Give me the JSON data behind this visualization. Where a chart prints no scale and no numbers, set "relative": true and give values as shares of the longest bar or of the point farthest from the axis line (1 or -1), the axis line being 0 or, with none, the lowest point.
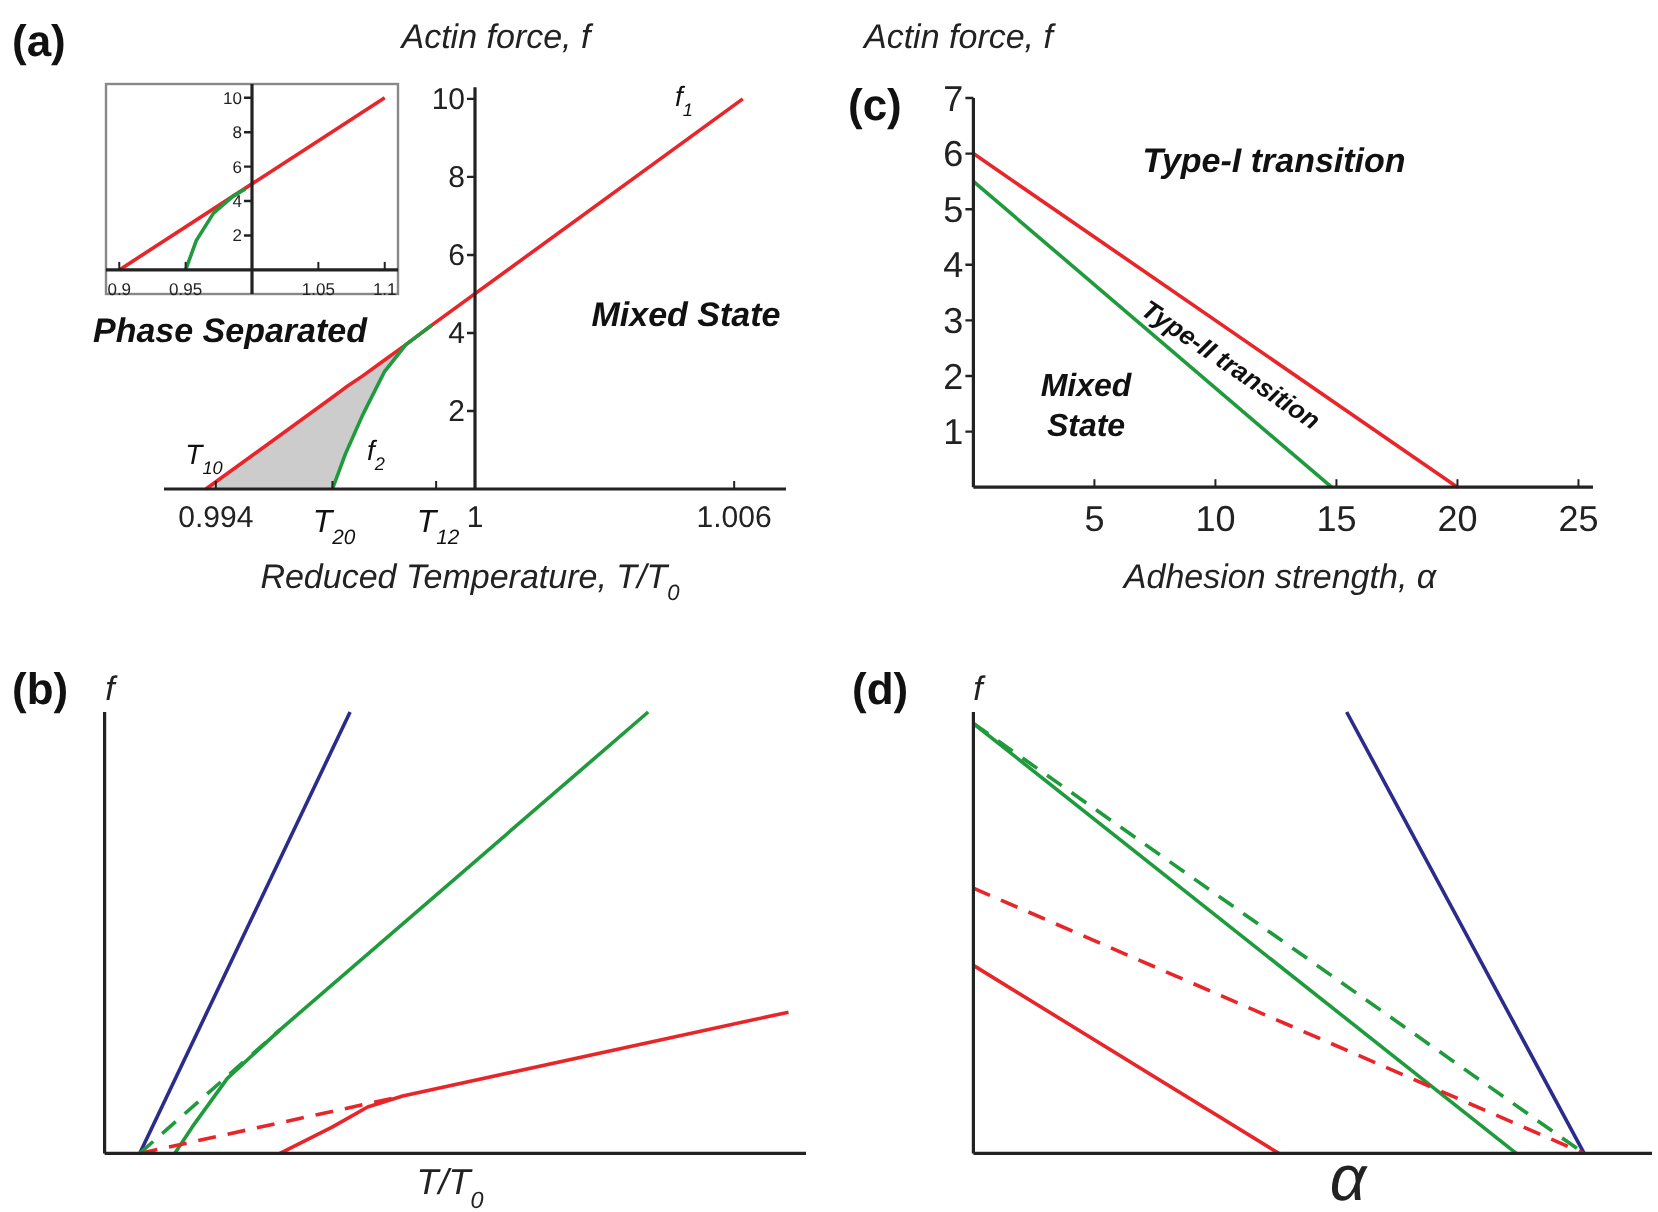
{
  "chart_data": [
    {
      "type": "line",
      "title": "(a)",
      "xlabel": "Reduced Temperature, T/T$_{0}$",
      "ylabel": "Actin force, f",
      "xlim": [
        0.9928,
        1.0072
      ],
      "ylim": [
        0,
        10.3
      ],
      "xticks": [
        0.994,
        {
          "value": 0.9967,
          "label": null
        },
        {
          "value": 0.9991,
          "label": null
        },
        1,
        1.006
      ],
      "yticks": [
        2,
        4,
        6,
        8,
        10
      ],
      "series": [
        {
          "color": "#e8262a",
          "x": [
            0.99377,
            0.9967,
            0.997,
            0.9974,
            0.9979,
            0.9984,
            0.999,
            1.0062
          ],
          "values": [
            0,
            2.35,
            2.6,
            2.9,
            3.3,
            3.7,
            4.2,
            10
          ],
          "lower": [
            0,
            0,
            0.9,
            1.9,
            3.0,
            3.7,
            4.2,
            null
          ],
          "upper": [
            0,
            2.35,
            2.6,
            2.9,
            3.3,
            3.7,
            4.2,
            null
          ]
        },
        {
          "color": "#1f9a3c",
          "x": [
            0.9967,
            0.997,
            0.9974,
            0.9979,
            0.9984,
            0.999
          ],
          "values": [
            0,
            0.9,
            1.9,
            3.0,
            3.7,
            4.2
          ]
        }
      ],
      "annotations": [
        "f$_{1}$",
        "f$_{2}$",
        "T$_{10}$",
        "T$_{20}$",
        "T$_{12}$",
        "Phase Separated",
        "Mixed State"
      ]
    },
    {
      "type": "line",
      "xlim": [
        0.89,
        1.11
      ],
      "ylim": [
        -1.4,
        10.8
      ],
      "xticks": [
        0.9,
        0.95,
        1.05,
        1.1
      ],
      "yticks": [
        2,
        4,
        6,
        8,
        10
      ],
      "series": [
        {
          "color": "#e8262a",
          "x": [
            0.9,
            1.1
          ],
          "values": [
            0,
            10
          ]
        },
        {
          "color": "#1f9a3c",
          "x": [
            0.95,
            0.958,
            0.971,
            0.986,
            0.995
          ],
          "values": [
            0,
            1.7,
            3.3,
            4.3,
            4.7
          ]
        }
      ]
    },
    {
      "type": "line",
      "title": "(c)",
      "xlabel": "Adhesion strength, α",
      "ylabel": "Actin force, f",
      "xlim": [
        0,
        25.6
      ],
      "ylim": [
        0,
        7
      ],
      "xticks": [
        5,
        10,
        15,
        20,
        25
      ],
      "yticks": [
        1,
        2,
        3,
        4,
        5,
        6,
        7
      ],
      "series": [
        {
          "color": "#e8262a",
          "x": [
            0,
            20
          ],
          "values": [
            6,
            0
          ]
        },
        {
          "color": "#1f9a3c",
          "x": [
            0,
            14.8
          ],
          "values": [
            5.5,
            0
          ]
        }
      ],
      "annotations": [
        "Type-I transition",
        "Type-II transition",
        "Mixed State"
      ]
    },
    {
      "type": "line",
      "title": "(b)",
      "xlabel": "T/T$_{0}$",
      "ylabel": "f",
      "relative": true,
      "categories": [
        null,
        null,
        null,
        null,
        null,
        null,
        null,
        null,
        null,
        null,
        null,
        null,
        null,
        null,
        null,
        null,
        null,
        null,
        null,
        null,
        null,
        null,
        null,
        null,
        null,
        null,
        null,
        null,
        null,
        null,
        null,
        null,
        null,
        null,
        null,
        null,
        null,
        null,
        null,
        null,
        null
      ],
      "series": [
        {
          "color": "#2b2b8c",
          "values": [
            null,
            null,
            0,
            null,
            null,
            null,
            null,
            null,
            null,
            null,
            null,
            null,
            null,
            null,
            1,
            null,
            null,
            null,
            null,
            null,
            null,
            null,
            null,
            null,
            null,
            null,
            null,
            null,
            null,
            null,
            null,
            null,
            null,
            null,
            null,
            null,
            null,
            null,
            null,
            null,
            null
          ]
        },
        {
          "color": "#1f9a3c",
          "values": [
            null,
            null,
            null,
            null,
            0,
            0.06,
            null,
            0.17,
            null,
            null,
            0.28,
            null,
            null,
            null,
            null,
            null,
            null,
            null,
            null,
            null,
            null,
            null,
            null,
            null,
            null,
            null,
            null,
            null,
            null,
            null,
            null,
            1,
            null,
            null,
            null,
            null,
            null,
            null,
            null,
            null,
            null
          ]
        },
        {
          "color": "#1f9a3c",
          "line_style": "dashed",
          "values": [
            null,
            null,
            0,
            null,
            null,
            null,
            null,
            null,
            null,
            null,
            0.28,
            null,
            null,
            null,
            null,
            null,
            null,
            null,
            null,
            null,
            null,
            null,
            null,
            null,
            null,
            null,
            null,
            null,
            null,
            null,
            null,
            null,
            null,
            null,
            null,
            null,
            null,
            null,
            null,
            null,
            null
          ]
        },
        {
          "color": "#e8262a",
          "values": [
            null,
            null,
            null,
            null,
            null,
            null,
            null,
            null,
            null,
            null,
            0,
            null,
            null,
            0.06,
            null,
            0.105,
            null,
            0.13,
            null,
            null,
            null,
            null,
            null,
            null,
            null,
            null,
            null,
            null,
            null,
            null,
            null,
            null,
            null,
            null,
            null,
            null,
            null,
            null,
            null,
            0.32,
            null
          ]
        },
        {
          "color": "#e8262a",
          "line_style": "dashed",
          "values": [
            null,
            null,
            0,
            null,
            null,
            null,
            null,
            null,
            null,
            null,
            null,
            null,
            null,
            null,
            null,
            null,
            null,
            0.13,
            null,
            null,
            null,
            null,
            null,
            null,
            null,
            null,
            null,
            null,
            null,
            null,
            null,
            null,
            null,
            null,
            null,
            null,
            null,
            null,
            null,
            null,
            null
          ]
        }
      ]
    },
    {
      "type": "line",
      "title": "(d)",
      "xlabel": "α",
      "ylabel": "f",
      "relative": true,
      "categories": [
        null,
        null,
        null,
        null,
        null,
        null,
        null,
        null,
        null,
        null,
        null,
        null,
        null,
        null,
        null,
        null,
        null,
        null,
        null,
        null,
        null,
        null,
        null,
        null,
        null,
        null,
        null,
        null,
        null,
        null,
        null,
        null,
        null,
        null,
        null,
        null,
        null,
        null,
        null,
        null,
        null
      ],
      "series": [
        {
          "color": "#2b2b8c",
          "values": [
            null,
            null,
            null,
            null,
            null,
            null,
            null,
            null,
            null,
            null,
            null,
            null,
            null,
            null,
            null,
            null,
            null,
            null,
            null,
            null,
            null,
            null,
            1,
            null,
            null,
            null,
            null,
            null,
            null,
            null,
            null,
            null,
            null,
            null,
            null,
            null,
            0,
            null,
            null,
            null,
            null
          ]
        },
        {
          "color": "#1f9a3c",
          "values": [
            0.974,
            null,
            null,
            null,
            null,
            null,
            null,
            null,
            null,
            null,
            null,
            null,
            null,
            null,
            null,
            null,
            null,
            null,
            null,
            null,
            null,
            null,
            null,
            null,
            null,
            null,
            null,
            null,
            null,
            null,
            null,
            null,
            0,
            null,
            null,
            null,
            null,
            null,
            null,
            null,
            null
          ]
        },
        {
          "color": "#1f9a3c",
          "line_style": "dashed",
          "values": [
            0.974,
            null,
            null,
            null,
            null,
            null,
            null,
            null,
            null,
            null,
            null,
            null,
            null,
            null,
            null,
            null,
            null,
            null,
            null,
            null,
            null,
            null,
            null,
            null,
            null,
            null,
            null,
            null,
            null,
            null,
            null,
            null,
            null,
            null,
            null,
            null,
            0,
            null,
            null,
            null,
            null
          ]
        },
        {
          "color": "#e8262a",
          "line_style": "dashed",
          "values": [
            0.601,
            null,
            null,
            null,
            null,
            null,
            null,
            null,
            null,
            null,
            null,
            null,
            null,
            null,
            null,
            null,
            null,
            null,
            null,
            null,
            null,
            null,
            null,
            null,
            null,
            null,
            null,
            null,
            null,
            null,
            null,
            null,
            null,
            null,
            null,
            null,
            0,
            null,
            null,
            null,
            null
          ]
        },
        {
          "color": "#e8262a",
          "values": [
            0.426,
            null,
            null,
            null,
            null,
            null,
            null,
            null,
            null,
            null,
            null,
            null,
            null,
            null,
            null,
            null,
            null,
            null,
            0,
            null,
            null,
            null,
            null,
            null,
            null,
            null,
            null,
            null,
            null,
            null,
            null,
            null,
            null,
            null,
            null,
            null,
            null,
            null,
            null,
            null,
            null
          ]
        }
      ]
    }
  ]
}
